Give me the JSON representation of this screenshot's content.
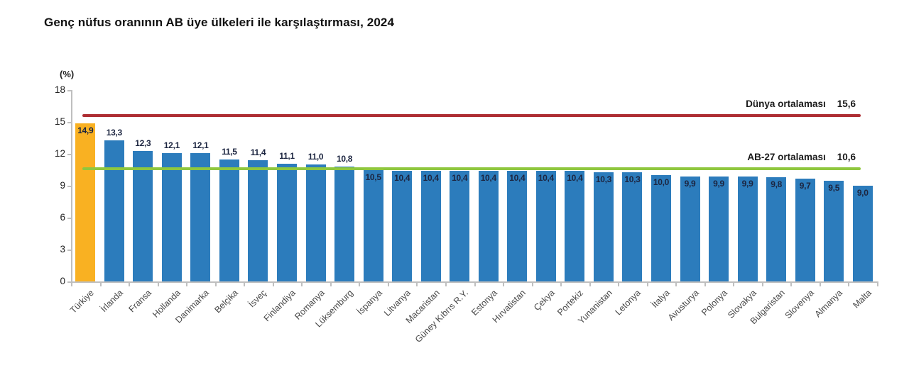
{
  "chart_data": {
    "type": "bar",
    "title": "Genç nüfus oranının AB üye ülkeleri ile karşılaştırması, 2024",
    "y_axis": {
      "unit": "(%)",
      "range": [
        0,
        18
      ],
      "ticks": [
        0,
        3,
        6,
        9,
        12,
        15,
        18
      ]
    },
    "categories": [
      "Türkiye",
      "İrlanda",
      "Fransa",
      "Hollanda",
      "Danimarka",
      "Belçika",
      "İsveç",
      "Finlandiya",
      "Romanya",
      "Lüksemburg",
      "İspanya",
      "Litvanya",
      "Macaristan",
      "Güney Kıbrıs R.Y.",
      "Estonya",
      "Hırvatistan",
      "Çekya",
      "Portekiz",
      "Yunanistan",
      "Letonya",
      "İtalya",
      "Avusturya",
      "Polonya",
      "Slovakya",
      "Bulgaristan",
      "Slovenya",
      "Almanya",
      "Malta"
    ],
    "values": [
      14.9,
      13.3,
      12.3,
      12.1,
      12.1,
      11.5,
      11.4,
      11.1,
      11.0,
      10.8,
      10.5,
      10.4,
      10.4,
      10.4,
      10.4,
      10.4,
      10.4,
      10.4,
      10.3,
      10.3,
      10.0,
      9.9,
      9.9,
      9.9,
      9.8,
      9.7,
      9.5,
      9.0
    ],
    "value_labels": [
      "14,9",
      "13,3",
      "12,3",
      "12,1",
      "12,1",
      "11,5",
      "11,4",
      "11,1",
      "11,0",
      "10,8",
      "10,5",
      "10,4",
      "10,4",
      "10,4",
      "10,4",
      "10,4",
      "10,4",
      "10,4",
      "10,3",
      "10,3",
      "10,0",
      "9,9",
      "9,9",
      "9,9",
      "9,8",
      "9,7",
      "9,5",
      "9,0"
    ],
    "highlight_index": 0,
    "reference_lines": [
      {
        "name": "world-average",
        "label": "Dünya ortalaması",
        "value": 15.6,
        "value_label": "15,6",
        "color": "#ae2e33"
      },
      {
        "name": "eu27-average",
        "label": "AB-27 ortalaması",
        "value": 10.6,
        "value_label": "10,6",
        "color": "#8fc73e"
      }
    ],
    "legend_position": "none",
    "grid": false,
    "colors": {
      "bar": "#2c7cbc",
      "highlight_bar": "#f9b122",
      "value_label": "#1c2540",
      "axis": "#bfbfbf"
    }
  }
}
